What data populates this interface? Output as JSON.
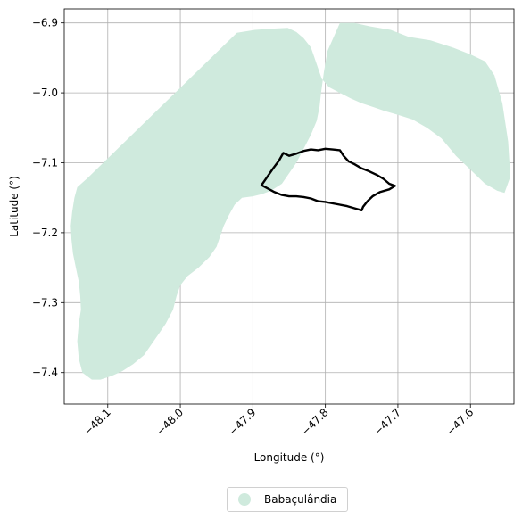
{
  "chart_data": {
    "type": "map",
    "xlabel": "Longitude (°)",
    "ylabel": "Latitude (°)",
    "xlim": [
      -48.16,
      -47.54
    ],
    "ylim": [
      -7.445,
      -6.88
    ],
    "xticks": [
      -48.1,
      -48.0,
      -47.9,
      -47.8,
      -47.7,
      -47.6
    ],
    "xtick_labels": [
      "−48.1",
      "−48.0",
      "−47.9",
      "−47.8",
      "−47.7",
      "−47.6"
    ],
    "yticks": [
      -6.9,
      -7.0,
      -7.1,
      -7.2,
      -7.3,
      -7.4
    ],
    "ytick_labels": [
      "−6.9",
      "−7.0",
      "−7.1",
      "−7.2",
      "−7.3",
      "−7.4"
    ],
    "grid": true,
    "legend": {
      "placement": "bottom-center",
      "entries": [
        {
          "label": "Babaçulândia",
          "color": "#cfeadd"
        }
      ]
    },
    "municipality": {
      "name": "Babaçulândia",
      "fill": "#cfeadd",
      "boundary": [
        [
          -47.922,
          -6.914
        ],
        [
          -47.897,
          -6.91
        ],
        [
          -47.87,
          -6.908
        ],
        [
          -47.852,
          -6.907
        ],
        [
          -47.84,
          -6.913
        ],
        [
          -47.83,
          -6.922
        ],
        [
          -47.82,
          -6.935
        ],
        [
          -47.815,
          -6.95
        ],
        [
          -47.81,
          -6.965
        ],
        [
          -47.805,
          -6.98
        ],
        [
          -47.795,
          -6.992
        ],
        [
          -47.78,
          -7.0
        ],
        [
          -47.765,
          -7.008
        ],
        [
          -47.75,
          -7.015
        ],
        [
          -47.735,
          -7.02
        ],
        [
          -47.718,
          -7.026
        ],
        [
          -47.698,
          -7.032
        ],
        [
          -47.68,
          -7.038
        ],
        [
          -47.66,
          -7.05
        ],
        [
          -47.64,
          -7.065
        ],
        [
          -47.62,
          -7.09
        ],
        [
          -47.6,
          -7.11
        ],
        [
          -47.58,
          -7.13
        ],
        [
          -47.563,
          -7.14
        ],
        [
          -47.553,
          -7.143
        ],
        [
          -47.545,
          -7.12
        ],
        [
          -47.548,
          -7.07
        ],
        [
          -47.556,
          -7.015
        ],
        [
          -47.567,
          -6.975
        ],
        [
          -47.58,
          -6.955
        ],
        [
          -47.6,
          -6.945
        ],
        [
          -47.625,
          -6.935
        ],
        [
          -47.655,
          -6.925
        ],
        [
          -47.685,
          -6.92
        ],
        [
          -47.71,
          -6.91
        ],
        [
          -47.738,
          -6.905
        ],
        [
          -47.76,
          -6.9
        ],
        [
          -47.78,
          -6.9
        ],
        [
          -47.797,
          -6.94
        ],
        [
          -47.802,
          -6.97
        ],
        [
          -47.806,
          -7.0
        ],
        [
          -47.808,
          -7.02
        ],
        [
          -47.812,
          -7.04
        ],
        [
          -47.82,
          -7.06
        ],
        [
          -47.83,
          -7.08
        ],
        [
          -47.84,
          -7.1
        ],
        [
          -47.85,
          -7.115
        ],
        [
          -47.86,
          -7.13
        ],
        [
          -47.875,
          -7.14
        ],
        [
          -47.888,
          -7.145
        ],
        [
          -47.9,
          -7.148
        ],
        [
          -47.915,
          -7.15
        ],
        [
          -47.925,
          -7.16
        ],
        [
          -47.933,
          -7.175
        ],
        [
          -47.94,
          -7.19
        ],
        [
          -47.945,
          -7.205
        ],
        [
          -47.95,
          -7.22
        ],
        [
          -47.96,
          -7.235
        ],
        [
          -47.975,
          -7.25
        ],
        [
          -47.99,
          -7.262
        ],
        [
          -48.0,
          -7.275
        ],
        [
          -48.005,
          -7.29
        ],
        [
          -48.01,
          -7.31
        ],
        [
          -48.02,
          -7.33
        ],
        [
          -48.03,
          -7.345
        ],
        [
          -48.04,
          -7.36
        ],
        [
          -48.05,
          -7.375
        ],
        [
          -48.065,
          -7.388
        ],
        [
          -48.08,
          -7.398
        ],
        [
          -48.095,
          -7.405
        ],
        [
          -48.11,
          -7.41
        ],
        [
          -48.122,
          -7.41
        ],
        [
          -48.135,
          -7.4
        ],
        [
          -48.14,
          -7.38
        ],
        [
          -48.142,
          -7.355
        ],
        [
          -48.14,
          -7.33
        ],
        [
          -48.137,
          -7.31
        ],
        [
          -48.138,
          -7.29
        ],
        [
          -48.14,
          -7.27
        ],
        [
          -48.144,
          -7.25
        ],
        [
          -48.148,
          -7.23
        ],
        [
          -48.15,
          -7.21
        ],
        [
          -48.151,
          -7.19
        ],
        [
          -48.149,
          -7.17
        ],
        [
          -48.146,
          -7.15
        ],
        [
          -48.142,
          -7.135
        ],
        [
          -48.128,
          -7.122
        ]
      ],
      "inner_outline": [
        [
          -47.888,
          -7.132
        ],
        [
          -47.88,
          -7.12
        ],
        [
          -47.872,
          -7.108
        ],
        [
          -47.864,
          -7.097
        ],
        [
          -47.858,
          -7.086
        ],
        [
          -47.85,
          -7.09
        ],
        [
          -47.84,
          -7.087
        ],
        [
          -47.83,
          -7.083
        ],
        [
          -47.82,
          -7.081
        ],
        [
          -47.81,
          -7.082
        ],
        [
          -47.8,
          -7.08
        ],
        [
          -47.79,
          -7.081
        ],
        [
          -47.78,
          -7.082
        ],
        [
          -47.775,
          -7.09
        ],
        [
          -47.768,
          -7.098
        ],
        [
          -47.76,
          -7.102
        ],
        [
          -47.75,
          -7.108
        ],
        [
          -47.74,
          -7.112
        ],
        [
          -47.728,
          -7.118
        ],
        [
          -47.72,
          -7.123
        ],
        [
          -47.712,
          -7.13
        ],
        [
          -47.704,
          -7.133
        ],
        [
          -47.712,
          -7.138
        ],
        [
          -47.725,
          -7.142
        ],
        [
          -47.735,
          -7.148
        ],
        [
          -47.742,
          -7.155
        ],
        [
          -47.748,
          -7.163
        ],
        [
          -47.75,
          -7.168
        ],
        [
          -47.76,
          -7.165
        ],
        [
          -47.77,
          -7.162
        ],
        [
          -47.78,
          -7.16
        ],
        [
          -47.79,
          -7.158
        ],
        [
          -47.8,
          -7.156
        ],
        [
          -47.81,
          -7.155
        ],
        [
          -47.82,
          -7.151
        ],
        [
          -47.83,
          -7.149
        ],
        [
          -47.84,
          -7.148
        ],
        [
          -47.85,
          -7.148
        ],
        [
          -47.86,
          -7.146
        ],
        [
          -47.87,
          -7.142
        ]
      ]
    }
  }
}
